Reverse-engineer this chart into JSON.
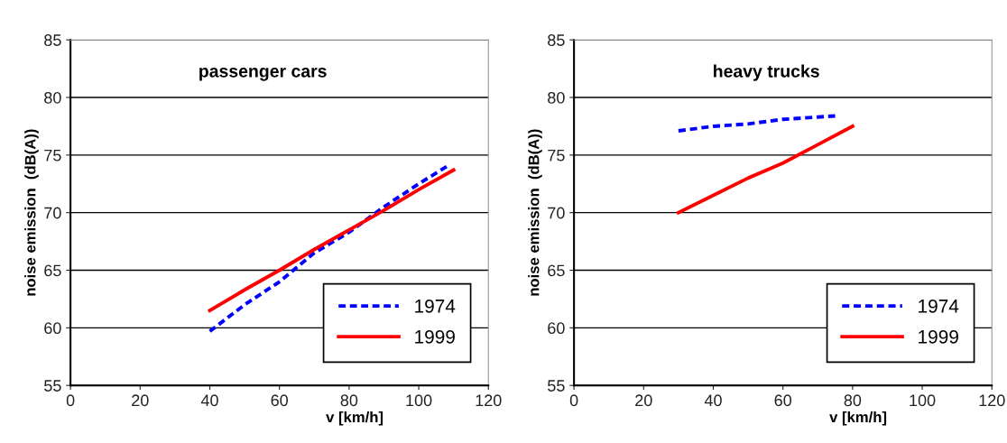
{
  "chart_data": [
    {
      "type": "line",
      "title": "passenger cars",
      "xlabel": "v [km/h]",
      "ylabel": "noise emission  (dB(A))",
      "xlim": [
        0,
        120
      ],
      "xticks": [
        0,
        20,
        40,
        60,
        80,
        100,
        120
      ],
      "ylim": [
        55,
        85
      ],
      "yticks": [
        55,
        60,
        65,
        70,
        75,
        80,
        85
      ],
      "grid": "y",
      "legend": "bottom right",
      "series": [
        {
          "name": "1974",
          "color": "#0000ff",
          "line_style": "dashed",
          "x": [
            40,
            50,
            60,
            70,
            80,
            90,
            100,
            108
          ],
          "values": [
            59.7,
            62,
            64,
            66.5,
            68.3,
            70.5,
            72.5,
            74
          ]
        },
        {
          "name": "1999",
          "color": "#ff0000",
          "line_style": "solid",
          "x": [
            40,
            50,
            60,
            70,
            80,
            90,
            100,
            110
          ],
          "values": [
            61.5,
            63.3,
            65,
            66.8,
            68.5,
            70.2,
            72,
            73.7
          ]
        }
      ]
    },
    {
      "type": "line",
      "title": "heavy trucks",
      "xlabel": "v [km/h]",
      "ylabel": "noise emission  (dB(A))",
      "xlim": [
        0,
        120
      ],
      "xticks": [
        0,
        20,
        40,
        60,
        80,
        100,
        120
      ],
      "ylim": [
        55,
        85
      ],
      "yticks": [
        55,
        60,
        65,
        70,
        75,
        80,
        85
      ],
      "grid": "y",
      "legend": "bottom right",
      "series": [
        {
          "name": "1974",
          "color": "#0000ff",
          "line_style": "dashed",
          "x": [
            30,
            40,
            50,
            60,
            70,
            75
          ],
          "values": [
            77.1,
            77.5,
            77.7,
            78.1,
            78.3,
            78.4
          ]
        },
        {
          "name": "1999",
          "color": "#ff0000",
          "line_style": "solid",
          "x": [
            30,
            40,
            50,
            60,
            70,
            80
          ],
          "values": [
            70,
            71.5,
            73,
            74.3,
            75.9,
            77.5
          ]
        }
      ]
    }
  ]
}
